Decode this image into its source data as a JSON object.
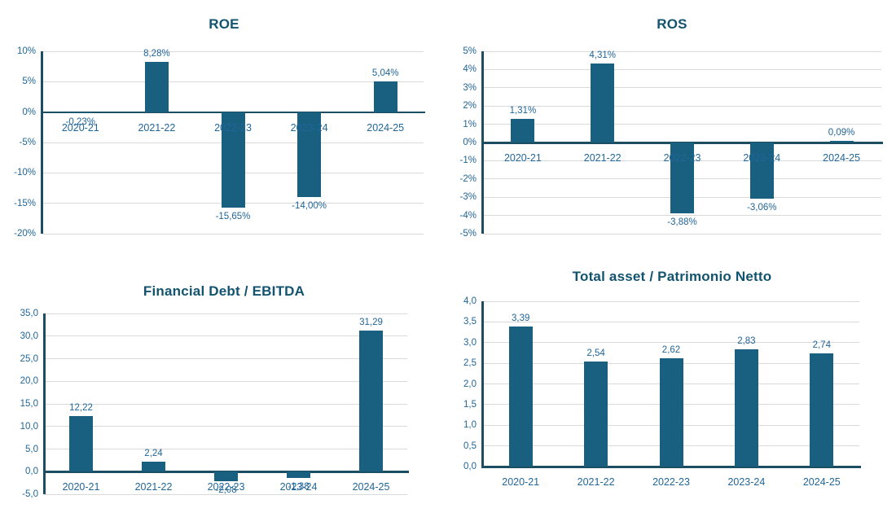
{
  "page": {
    "background": "#FFFFFF"
  },
  "colors": {
    "bar": "#195F80",
    "title": "#12536F",
    "label": "#216699",
    "axis": "#1C4E63",
    "gridline": "#D9D9D9"
  },
  "chart_data": [
    {
      "type": "bar",
      "title": "ROE",
      "categories": [
        "2020-21",
        "2021-22",
        "2022-23",
        "2023-24",
        "2024-25"
      ],
      "values": [
        -0.23,
        8.28,
        -15.65,
        -14.0,
        5.04
      ],
      "value_labels": [
        "-0,23%",
        "8,28%",
        "-15,65%",
        "-14,00%",
        "5,04%"
      ],
      "ylim": [
        -20,
        10
      ],
      "yticks": [
        10,
        5,
        0,
        -5,
        -10,
        -15,
        -20
      ],
      "ytick_labels": [
        "10%",
        "5%",
        "0%",
        "-5%",
        "-10%",
        "-15%",
        "-20%"
      ],
      "grid": true,
      "legend": false
    },
    {
      "type": "bar",
      "title": "ROS",
      "categories": [
        "2020-21",
        "2021-22",
        "2022-23",
        "2023-24",
        "2024-25"
      ],
      "values": [
        1.31,
        4.31,
        -3.88,
        -3.06,
        0.09
      ],
      "value_labels": [
        "1,31%",
        "4,31%",
        "-3,88%",
        "-3,06%",
        "0,09%"
      ],
      "ylim": [
        -5,
        5
      ],
      "yticks": [
        5,
        4,
        3,
        2,
        1,
        0,
        -1,
        -2,
        -3,
        -4,
        -5
      ],
      "ytick_labels": [
        "5%",
        "4%",
        "3%",
        "2%",
        "1%",
        "0%",
        "-1%",
        "-2%",
        "-3%",
        "-4%",
        "-5%"
      ],
      "grid": true,
      "legend": false
    },
    {
      "type": "bar",
      "title": "Financial Debt / EBITDA",
      "categories": [
        "2020-21",
        "2021-22",
        "2022-23",
        "2023-24",
        "2024-25"
      ],
      "values": [
        12.22,
        2.24,
        -2.08,
        -1.38,
        31.29
      ],
      "value_labels": [
        "12,22",
        "2,24",
        "-2,08",
        "-1,38",
        "31,29"
      ],
      "ylim": [
        -5,
        35
      ],
      "yticks": [
        35,
        30,
        25,
        20,
        15,
        10,
        5,
        0,
        -5
      ],
      "ytick_labels": [
        "35,0",
        "30,0",
        "25,0",
        "20,0",
        "15,0",
        "10,0",
        "5,0",
        "0,0",
        "-5,0"
      ],
      "grid": true,
      "legend": false
    },
    {
      "type": "bar",
      "title": "Total asset / Patrimonio Netto",
      "categories": [
        "2020-21",
        "2021-22",
        "2022-23",
        "2023-24",
        "2024-25"
      ],
      "values": [
        3.39,
        2.54,
        2.62,
        2.83,
        2.74
      ],
      "value_labels": [
        "3,39",
        "2,54",
        "2,62",
        "2,83",
        "2,74"
      ],
      "ylim": [
        0,
        4
      ],
      "yticks": [
        4,
        3.5,
        3,
        2.5,
        2,
        1.5,
        1,
        0.5,
        0
      ],
      "ytick_labels": [
        "4,0",
        "3,5",
        "3,0",
        "2,5",
        "2,0",
        "1,5",
        "1,0",
        "0,5",
        "0,0"
      ],
      "grid": true,
      "legend": false
    }
  ]
}
